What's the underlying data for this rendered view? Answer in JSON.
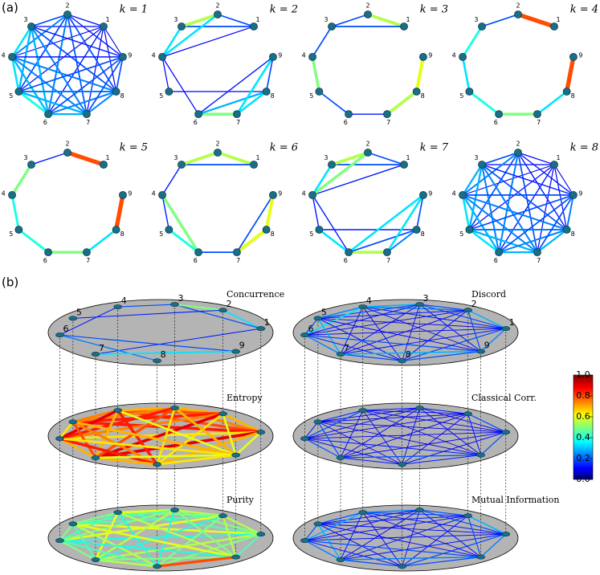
{
  "node_labels": [
    "1",
    "2",
    "3",
    "4",
    "5",
    "6",
    "7",
    "8",
    "9"
  ],
  "pairs": [
    [
      1,
      2
    ],
    [
      1,
      3
    ],
    [
      1,
      4
    ],
    [
      1,
      5
    ],
    [
      1,
      6
    ],
    [
      1,
      7
    ],
    [
      1,
      8
    ],
    [
      1,
      9
    ],
    [
      2,
      3
    ],
    [
      2,
      4
    ],
    [
      2,
      5
    ],
    [
      2,
      6
    ],
    [
      2,
      7
    ],
    [
      2,
      8
    ],
    [
      2,
      9
    ],
    [
      3,
      4
    ],
    [
      3,
      5
    ],
    [
      3,
      6
    ],
    [
      3,
      7
    ],
    [
      3,
      8
    ],
    [
      3,
      9
    ],
    [
      4,
      5
    ],
    [
      4,
      6
    ],
    [
      4,
      7
    ],
    [
      4,
      8
    ],
    [
      4,
      9
    ],
    [
      5,
      6
    ],
    [
      5,
      7
    ],
    [
      5,
      8
    ],
    [
      5,
      9
    ],
    [
      6,
      7
    ],
    [
      6,
      8
    ],
    [
      6,
      9
    ],
    [
      7,
      8
    ],
    [
      7,
      9
    ],
    [
      8,
      9
    ]
  ],
  "panel_a": {
    "label": "(a)",
    "graphs": [
      {
        "k_label": "k = 1",
        "weights": [
          0.15,
          0.12,
          0.1,
          0.12,
          0.15,
          0.12,
          0.12,
          0.1,
          0.2,
          0.25,
          0.2,
          0.25,
          0.2,
          0.2,
          0.15,
          0.35,
          0.3,
          0.3,
          0.25,
          0.2,
          0.15,
          0.35,
          0.3,
          0.25,
          0.25,
          0.15,
          0.4,
          0.3,
          0.25,
          0.2,
          0.3,
          0.25,
          0.2,
          0.25,
          0.2,
          0.2
        ]
      },
      {
        "k_label": "k = 2",
        "weights": [
          0.2,
          0.2,
          0.12,
          null,
          null,
          null,
          null,
          null,
          0.55,
          0.35,
          null,
          null,
          null,
          null,
          null,
          0.35,
          null,
          null,
          null,
          null,
          null,
          0.12,
          0.12,
          null,
          null,
          null,
          null,
          null,
          0.12,
          null,
          0.5,
          0.3,
          0.15,
          0.35,
          0.35,
          0.2
        ]
      },
      {
        "k_label": "k = 3",
        "weights": [
          0.55,
          0.2,
          null,
          null,
          null,
          null,
          null,
          null,
          0.2,
          null,
          null,
          null,
          null,
          null,
          null,
          0.2,
          null,
          null,
          null,
          null,
          null,
          0.5,
          null,
          null,
          null,
          null,
          0.2,
          null,
          null,
          null,
          0.15,
          null,
          null,
          0.55,
          null,
          0.6
        ]
      },
      {
        "k_label": "k = 4",
        "weights": [
          0.8,
          null,
          null,
          null,
          null,
          null,
          null,
          null,
          0.2,
          null,
          null,
          null,
          null,
          null,
          null,
          0.4,
          null,
          null,
          null,
          null,
          null,
          0.35,
          null,
          null,
          null,
          null,
          0.4,
          null,
          null,
          null,
          0.5,
          null,
          null,
          0.35,
          null,
          0.8
        ]
      },
      {
        "k_label": "k = 5",
        "weights": [
          0.8,
          null,
          null,
          null,
          null,
          null,
          null,
          null,
          0.15,
          null,
          null,
          null,
          null,
          null,
          null,
          0.5,
          null,
          null,
          null,
          null,
          null,
          0.4,
          null,
          null,
          null,
          null,
          0.4,
          null,
          null,
          null,
          0.5,
          null,
          null,
          0.35,
          null,
          0.8
        ]
      },
      {
        "k_label": "k = 6",
        "weights": [
          0.55,
          0.2,
          null,
          null,
          null,
          null,
          null,
          null,
          0.55,
          null,
          null,
          null,
          null,
          null,
          null,
          0.15,
          null,
          null,
          null,
          null,
          null,
          0.15,
          0.5,
          null,
          null,
          null,
          0.4,
          null,
          null,
          null,
          0.2,
          null,
          null,
          0.6,
          0.2,
          0.6
        ]
      },
      {
        "k_label": "k = 7",
        "weights": [
          0.2,
          0.2,
          0.15,
          null,
          null,
          null,
          null,
          null,
          0.55,
          0.5,
          null,
          null,
          null,
          null,
          null,
          0.35,
          null,
          null,
          null,
          null,
          null,
          0.15,
          0.15,
          null,
          null,
          null,
          0.35,
          null,
          0.15,
          null,
          0.55,
          0.2,
          0.35,
          0.25,
          0.35,
          0.2
        ]
      },
      {
        "k_label": "k = 8",
        "weights": [
          0.12,
          0.12,
          0.1,
          0.12,
          0.15,
          0.12,
          0.12,
          0.1,
          0.2,
          0.25,
          0.2,
          0.25,
          0.2,
          0.15,
          0.15,
          0.3,
          0.3,
          0.25,
          0.25,
          0.2,
          0.15,
          0.35,
          0.3,
          0.25,
          0.25,
          0.2,
          0.35,
          0.3,
          0.25,
          0.2,
          0.3,
          0.25,
          0.2,
          0.3,
          0.2,
          0.25
        ]
      }
    ]
  },
  "panel_b": {
    "label": "(b)",
    "layers": [
      {
        "name": "Concurrence",
        "weights": [
          0.35,
          0.2,
          null,
          null,
          null,
          0.15,
          null,
          null,
          0.5,
          null,
          0.15,
          null,
          null,
          null,
          null,
          0.2,
          null,
          null,
          null,
          null,
          null,
          null,
          0.15,
          null,
          null,
          null,
          null,
          null,
          null,
          null,
          null,
          0.25,
          0.2,
          null,
          0.35,
          null
        ]
      },
      {
        "name": "Entropy",
        "weights": [
          0.7,
          0.75,
          0.8,
          0.85,
          0.65,
          0.9,
          0.7,
          0.6,
          0.7,
          0.8,
          0.85,
          0.75,
          0.9,
          0.65,
          0.6,
          0.7,
          0.75,
          0.85,
          0.8,
          0.65,
          0.7,
          0.75,
          0.9,
          0.7,
          0.85,
          0.6,
          0.65,
          0.8,
          0.75,
          0.7,
          0.7,
          0.85,
          0.65,
          0.7,
          0.6,
          0.65
        ]
      },
      {
        "name": "Purity",
        "weights": [
          0.55,
          0.5,
          0.45,
          0.6,
          0.4,
          0.55,
          0.5,
          0.45,
          0.55,
          0.5,
          0.45,
          0.6,
          0.4,
          0.5,
          0.55,
          0.6,
          0.45,
          0.5,
          0.55,
          0.4,
          0.5,
          0.5,
          0.45,
          0.6,
          0.4,
          0.55,
          0.5,
          0.45,
          0.55,
          0.6,
          0.5,
          0.45,
          0.4,
          0.55,
          0.5,
          0.8
        ]
      },
      {
        "name": "Discord",
        "weights": [
          0.3,
          0.2,
          0.15,
          0.1,
          0.12,
          0.15,
          0.2,
          0.25,
          0.2,
          0.25,
          0.15,
          0.1,
          0.12,
          0.15,
          0.2,
          0.3,
          0.2,
          0.15,
          0.12,
          0.1,
          0.15,
          0.25,
          0.35,
          0.15,
          0.12,
          0.1,
          0.2,
          0.3,
          0.15,
          0.12,
          0.25,
          0.15,
          0.2,
          0.2,
          0.3,
          0.2
        ]
      },
      {
        "name": "Classical Corr.",
        "weights": [
          0.2,
          0.12,
          0.12,
          0.1,
          0.12,
          0.12,
          0.15,
          0.2,
          0.15,
          0.12,
          0.12,
          0.1,
          0.12,
          0.12,
          0.15,
          0.15,
          0.12,
          0.1,
          0.12,
          0.1,
          0.12,
          0.15,
          0.2,
          0.12,
          0.1,
          0.1,
          0.15,
          0.2,
          0.12,
          0.1,
          0.2,
          0.12,
          0.15,
          0.15,
          0.2,
          0.15
        ]
      },
      {
        "name": "Mutual Information",
        "weights": [
          0.3,
          0.2,
          0.15,
          0.12,
          0.15,
          0.15,
          0.2,
          0.25,
          0.2,
          0.2,
          0.15,
          0.12,
          0.15,
          0.15,
          0.2,
          0.25,
          0.15,
          0.12,
          0.12,
          0.1,
          0.15,
          0.2,
          0.3,
          0.15,
          0.12,
          0.12,
          0.2,
          0.3,
          0.15,
          0.12,
          0.25,
          0.15,
          0.2,
          0.2,
          0.25,
          0.2
        ]
      }
    ]
  },
  "colorbar": {
    "ylim": [
      0,
      1
    ],
    "yticks": [
      {
        "value": 0,
        "label": "0.0"
      },
      {
        "value": 0.2,
        "label": "0.2"
      },
      {
        "value": 0.4,
        "label": "0.4"
      },
      {
        "value": 0.6,
        "label": "0.6"
      },
      {
        "value": 0.8,
        "label": "0.8"
      },
      {
        "value": 1,
        "label": "1.0"
      }
    ]
  }
}
